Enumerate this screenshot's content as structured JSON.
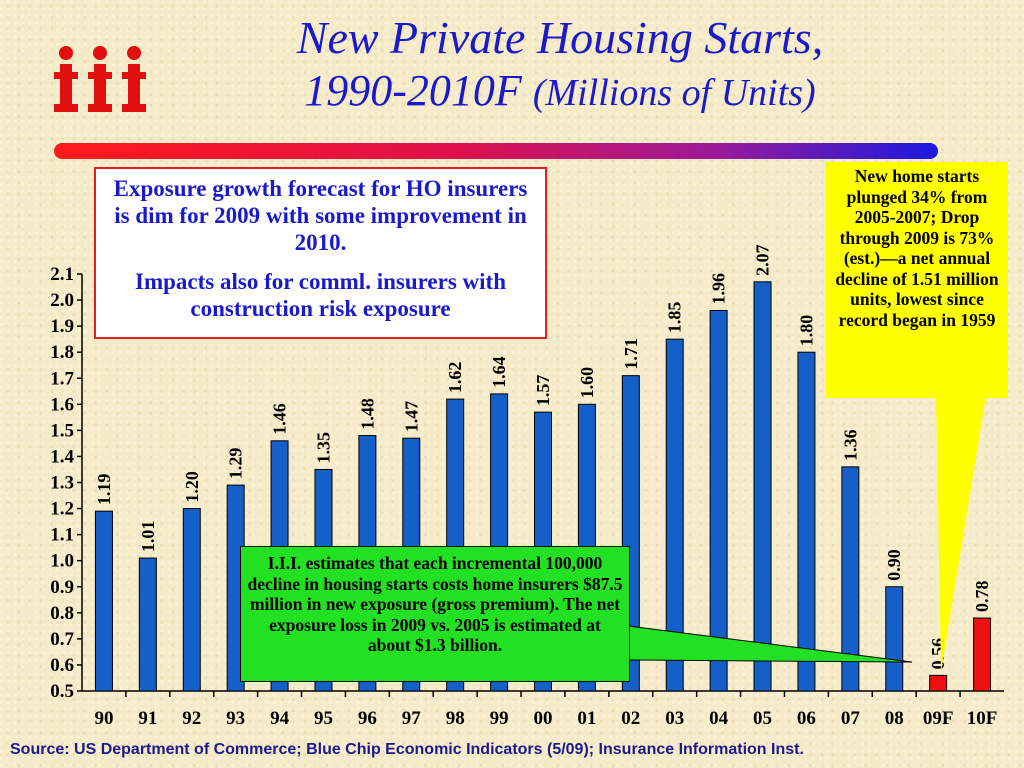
{
  "title_line1": "New Private Housing Starts,",
  "title_line2_main": "1990-2010F",
  "title_line2_sub": "(Millions of Units)",
  "logo_text": "iii",
  "note_box": {
    "para1": "Exposure growth forecast for HO insurers is dim for 2009 with some improvement in 2010.",
    "para2": "Impacts also for comml. insurers with construction risk exposure"
  },
  "callout_yellow": "New home starts plunged 34% from 2005-2007; Drop through 2009 is 73% (est.)—a net annual decline of 1.51 million units,  lowest since record began in 1959",
  "callout_green": "I.I.I. estimates that each incremental 100,000 decline in housing starts costs home insurers $87.5 million in new exposure (gross premium).  The net exposure loss in 2009 vs. 2005 is estimated at about $1.3 billion.",
  "source": "Source: US Department of Commerce; Blue Chip Economic Indicators (5/09); Insurance Information Inst.",
  "colors": {
    "actual": "#1560c8",
    "forecast": "#ee1010",
    "title": "#1a1acc"
  },
  "chart_data": {
    "type": "bar",
    "categories": [
      "90",
      "91",
      "92",
      "93",
      "94",
      "95",
      "96",
      "97",
      "98",
      "99",
      "00",
      "01",
      "02",
      "03",
      "04",
      "05",
      "06",
      "07",
      "08",
      "09F",
      "10F"
    ],
    "values": [
      1.19,
      1.01,
      1.2,
      1.29,
      1.46,
      1.35,
      1.48,
      1.47,
      1.62,
      1.64,
      1.57,
      1.6,
      1.71,
      1.85,
      1.96,
      2.07,
      1.8,
      1.36,
      0.9,
      0.56,
      0.78
    ],
    "data_labels": [
      "1.19",
      "1.01",
      "1.20",
      "1.29",
      "1.46",
      "1.35",
      "1.48",
      "1.47",
      "1.62",
      "1.64",
      "1.57",
      "1.60",
      "1.71",
      "1.85",
      "1.96",
      "2.07",
      "1.80",
      "1.36",
      "0.90",
      "0.56",
      "0.78"
    ],
    "forecast": [
      false,
      false,
      false,
      false,
      false,
      false,
      false,
      false,
      false,
      false,
      false,
      false,
      false,
      false,
      false,
      false,
      false,
      false,
      false,
      true,
      true
    ],
    "yticks": [
      "0.5",
      "0.6",
      "0.7",
      "0.8",
      "0.9",
      "1.0",
      "1.1",
      "1.2",
      "1.3",
      "1.4",
      "1.5",
      "1.6",
      "1.7",
      "1.8",
      "1.9",
      "2.0",
      "2.1"
    ],
    "ylim": [
      0.5,
      2.1
    ],
    "grid": false
  }
}
